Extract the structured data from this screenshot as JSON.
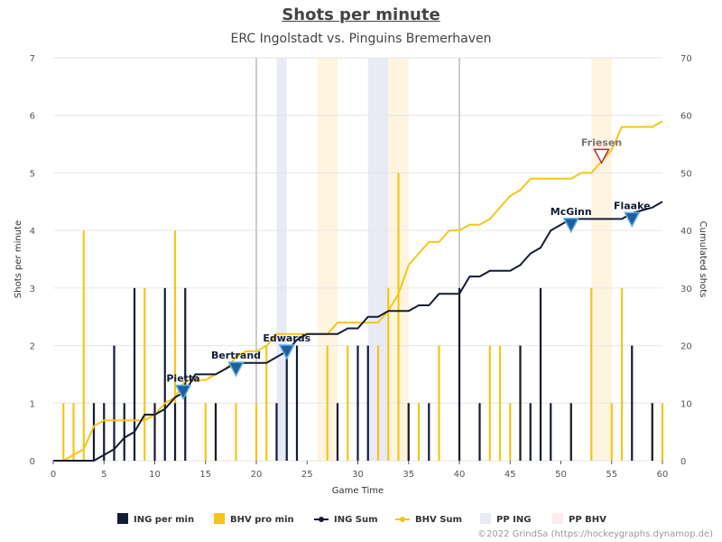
{
  "chart_data": {
    "type": "bar+line",
    "title": "Shots per minute",
    "subtitle": "ERC Ingolstadt vs. Pinguins Bremerhaven",
    "xlabel": "Game Time",
    "ylabel_left": "Shots per minute",
    "ylabel_right": "Cumulated shots",
    "xlim": [
      0,
      60
    ],
    "ylim_left": [
      0,
      7
    ],
    "ylim_right": [
      0,
      70
    ],
    "x_ticks": [
      0,
      5,
      10,
      15,
      20,
      25,
      30,
      35,
      40,
      45,
      50,
      55,
      60
    ],
    "y_ticks_left": [
      0,
      1,
      2,
      3,
      4,
      5,
      6,
      7
    ],
    "y_ticks_right": [
      0,
      10,
      20,
      30,
      40,
      50,
      60,
      70
    ],
    "grid": true,
    "legend_position": "bottom",
    "period_breaks": [
      20,
      40
    ],
    "colors": {
      "ing": "#131c35",
      "bhv": "#f5c518",
      "pp_ing": "#e8eaf6",
      "pp_bhv": "#fdebee",
      "bhv_shade": "#fff4e0",
      "grid": "#e6e6e6",
      "period": "#cccccc"
    },
    "series": [
      {
        "name": "ING per min",
        "kind": "bar",
        "points": [
          [
            4,
            1
          ],
          [
            5,
            1
          ],
          [
            6,
            2
          ],
          [
            7,
            1
          ],
          [
            8,
            3
          ],
          [
            10,
            1
          ],
          [
            11,
            3
          ],
          [
            12,
            1
          ],
          [
            13,
            3
          ],
          [
            16,
            1
          ],
          [
            22,
            1
          ],
          [
            23,
            2
          ],
          [
            24,
            2
          ],
          [
            28,
            1
          ],
          [
            30,
            2
          ],
          [
            31,
            2
          ],
          [
            35,
            1
          ],
          [
            37,
            1
          ],
          [
            40,
            3
          ],
          [
            42,
            1
          ],
          [
            46,
            2
          ],
          [
            47,
            1
          ],
          [
            48,
            3
          ],
          [
            49,
            1
          ],
          [
            51,
            1
          ],
          [
            57,
            2
          ],
          [
            59,
            1
          ]
        ]
      },
      {
        "name": "BHV pro min",
        "kind": "bar",
        "points": [
          [
            1,
            1
          ],
          [
            2,
            1
          ],
          [
            3,
            4
          ],
          [
            4,
            1
          ],
          [
            9,
            3
          ],
          [
            12,
            4
          ],
          [
            15,
            1
          ],
          [
            16,
            1
          ],
          [
            18,
            1
          ],
          [
            20,
            1
          ],
          [
            21,
            2
          ],
          [
            27,
            2
          ],
          [
            29,
            2
          ],
          [
            32,
            2
          ],
          [
            33,
            3
          ],
          [
            34,
            5
          ],
          [
            35,
            1
          ],
          [
            36,
            1
          ],
          [
            38,
            2
          ],
          [
            40,
            1
          ],
          [
            42,
            1
          ],
          [
            43,
            2
          ],
          [
            44,
            2
          ],
          [
            45,
            1
          ],
          [
            46,
            2
          ],
          [
            51,
            1
          ],
          [
            53,
            3
          ],
          [
            55,
            1
          ],
          [
            56,
            3
          ],
          [
            59,
            1
          ],
          [
            60,
            1
          ]
        ]
      },
      {
        "name": "ING Sum",
        "kind": "line",
        "points": [
          [
            0,
            0
          ],
          [
            4,
            0
          ],
          [
            5,
            1
          ],
          [
            6,
            2
          ],
          [
            7,
            4
          ],
          [
            8,
            5
          ],
          [
            9,
            8
          ],
          [
            10,
            8
          ],
          [
            11,
            9
          ],
          [
            12,
            11
          ],
          [
            13,
            12
          ],
          [
            14,
            15
          ],
          [
            16,
            15
          ],
          [
            17,
            16
          ],
          [
            18,
            17
          ],
          [
            19,
            17
          ],
          [
            20,
            17
          ],
          [
            21,
            17
          ],
          [
            22,
            18
          ],
          [
            23,
            19
          ],
          [
            24,
            21
          ],
          [
            25,
            22
          ],
          [
            27,
            22
          ],
          [
            28,
            22
          ],
          [
            29,
            23
          ],
          [
            30,
            23
          ],
          [
            31,
            25
          ],
          [
            32,
            25
          ],
          [
            33,
            26
          ],
          [
            35,
            26
          ],
          [
            36,
            27
          ],
          [
            37,
            27
          ],
          [
            38,
            29
          ],
          [
            40,
            29
          ],
          [
            41,
            32
          ],
          [
            42,
            32
          ],
          [
            43,
            33
          ],
          [
            45,
            33
          ],
          [
            46,
            34
          ],
          [
            47,
            36
          ],
          [
            48,
            37
          ],
          [
            49,
            40
          ],
          [
            50,
            41
          ],
          [
            51,
            42
          ],
          [
            56,
            42
          ],
          [
            57,
            43
          ],
          [
            59,
            44
          ],
          [
            60,
            45
          ]
        ]
      },
      {
        "name": "BHV Sum",
        "kind": "line",
        "points": [
          [
            0,
            0
          ],
          [
            1,
            0
          ],
          [
            2,
            1
          ],
          [
            3,
            2
          ],
          [
            4,
            6
          ],
          [
            5,
            7
          ],
          [
            9,
            7
          ],
          [
            10,
            8
          ],
          [
            11,
            10
          ],
          [
            12,
            11
          ],
          [
            13,
            14
          ],
          [
            14,
            14
          ],
          [
            15,
            14
          ],
          [
            16,
            15
          ],
          [
            17,
            16
          ],
          [
            18,
            18
          ],
          [
            19,
            19
          ],
          [
            20,
            19
          ],
          [
            21,
            20
          ],
          [
            22,
            22
          ],
          [
            25,
            22
          ],
          [
            26,
            22
          ],
          [
            27,
            22
          ],
          [
            28,
            24
          ],
          [
            32,
            24
          ],
          [
            33,
            26
          ],
          [
            34,
            29
          ],
          [
            35,
            34
          ],
          [
            36,
            36
          ],
          [
            37,
            38
          ],
          [
            38,
            38
          ],
          [
            39,
            40
          ],
          [
            40,
            40
          ],
          [
            41,
            41
          ],
          [
            42,
            41
          ],
          [
            43,
            42
          ],
          [
            44,
            44
          ],
          [
            45,
            46
          ],
          [
            46,
            47
          ],
          [
            47,
            49
          ],
          [
            51,
            49
          ],
          [
            52,
            50
          ],
          [
            53,
            50
          ],
          [
            54,
            52
          ],
          [
            55,
            54
          ],
          [
            56,
            58
          ],
          [
            59,
            58
          ],
          [
            60,
            59
          ]
        ]
      },
      {
        "name": "PP ING",
        "kind": "band",
        "ranges": [
          [
            22,
            23
          ],
          [
            31,
            33
          ]
        ]
      },
      {
        "name": "PP BHV",
        "kind": "band",
        "ranges": []
      }
    ],
    "bhv_highlight_ranges": [
      [
        26,
        28
      ],
      [
        33,
        35
      ],
      [
        53,
        55
      ]
    ],
    "goals": [
      {
        "label": "Pietta",
        "team": "ING",
        "x": 12.8,
        "cum": 12
      },
      {
        "label": "Bertrand",
        "team": "ING",
        "x": 18,
        "cum": 16
      },
      {
        "label": "Edwards",
        "team": "ING",
        "x": 23,
        "cum": 19
      },
      {
        "label": "McGinn",
        "team": "ING",
        "x": 51,
        "cum": 41
      },
      {
        "label": "Flaake",
        "team": "ING",
        "x": 57,
        "cum": 42
      },
      {
        "label": "Friesen",
        "team": "BHV",
        "x": 54,
        "cum": 53
      }
    ]
  },
  "credit": "©2022 GrindSa (https://hockeygraphs.dynamop.de)"
}
